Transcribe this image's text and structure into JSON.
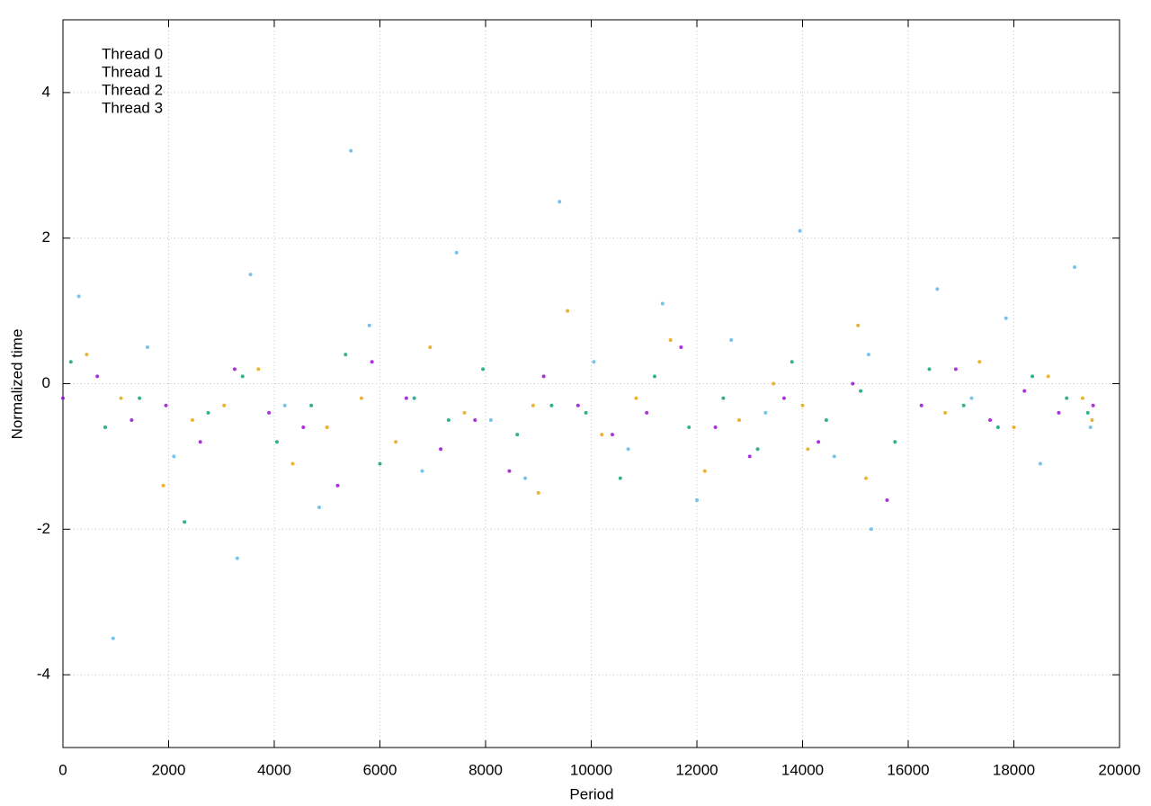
{
  "chart_data": {
    "type": "scatter",
    "xlabel": "Period",
    "ylabel": "Normalized time",
    "xlim": [
      0,
      20000
    ],
    "ylim": [
      -5,
      5
    ],
    "xticks": [
      0,
      2000,
      4000,
      6000,
      8000,
      10000,
      12000,
      14000,
      16000,
      18000,
      20000
    ],
    "yticks": [
      -4,
      -2,
      0,
      2,
      4
    ],
    "grid": true,
    "legend": "top-left",
    "series": [
      {
        "name": "Thread 0",
        "color": "#9400d3",
        "x": [
          0,
          650,
          1300,
          1950,
          2600,
          3250,
          3900,
          4550,
          5200,
          5850,
          6500,
          7150,
          7800,
          8450,
          9100,
          9750,
          10400,
          11050,
          11700,
          12350,
          13000,
          13650,
          14300,
          14950,
          15600,
          16250,
          16900,
          17550,
          18200,
          18850,
          19500
        ],
        "values": [
          -0.2,
          0.1,
          -0.5,
          -0.3,
          -0.8,
          0.2,
          -0.4,
          -0.6,
          -1.4,
          0.3,
          -0.2,
          -0.9,
          -0.5,
          -1.2,
          0.1,
          -0.3,
          -0.7,
          -0.4,
          0.5,
          -0.6,
          -1.0,
          -0.2,
          -0.8,
          0.0,
          -1.6,
          -0.3,
          0.2,
          -0.5,
          -0.1,
          -0.4,
          -0.3
        ]
      },
      {
        "name": "Thread 1",
        "color": "#009e73",
        "x": [
          150,
          800,
          1450,
          2300,
          2750,
          3400,
          4050,
          4700,
          5350,
          6000,
          6650,
          7300,
          7950,
          8600,
          9250,
          9900,
          10550,
          11200,
          11850,
          12500,
          13150,
          13800,
          14450,
          15100,
          15750,
          16400,
          17050,
          17700,
          18350,
          19000,
          19400
        ],
        "values": [
          0.3,
          -0.6,
          -0.2,
          -1.9,
          -0.4,
          0.1,
          -0.8,
          -0.3,
          0.4,
          -1.1,
          -0.2,
          -0.5,
          0.2,
          -0.7,
          -0.3,
          -0.4,
          -1.3,
          0.1,
          -0.6,
          -0.2,
          -0.9,
          0.3,
          -0.5,
          -0.1,
          -0.8,
          0.2,
          -0.3,
          -0.6,
          0.1,
          -0.2,
          -0.4
        ]
      },
      {
        "name": "Thread 2",
        "color": "#56b4e9",
        "x": [
          300,
          950,
          1600,
          2100,
          3300,
          3550,
          4200,
          4850,
          5450,
          5800,
          6800,
          7450,
          8100,
          8750,
          9400,
          10050,
          10700,
          11350,
          12000,
          12650,
          13300,
          13950,
          14600,
          15250,
          15300,
          16550,
          17200,
          17850,
          18500,
          19150,
          19450
        ],
        "values": [
          1.2,
          -3.5,
          0.5,
          -1.0,
          -2.4,
          1.5,
          -0.3,
          -1.7,
          3.2,
          0.8,
          -1.2,
          1.8,
          -0.5,
          -1.3,
          2.5,
          0.3,
          -0.9,
          1.1,
          -1.6,
          0.6,
          -0.4,
          2.1,
          -1.0,
          0.4,
          -2.0,
          1.3,
          -0.2,
          0.9,
          -1.1,
          1.6,
          -0.6
        ]
      },
      {
        "name": "Thread 3",
        "color": "#e69f00",
        "x": [
          450,
          1100,
          1900,
          2450,
          3050,
          3700,
          4350,
          5000,
          5650,
          6300,
          6950,
          7600,
          9000,
          8900,
          9550,
          10200,
          10850,
          11500,
          12150,
          12800,
          13450,
          14100,
          14000,
          15050,
          15200,
          16700,
          17350,
          18000,
          18650,
          19300,
          19480
        ],
        "values": [
          0.4,
          -0.2,
          -1.4,
          -0.5,
          -0.3,
          0.2,
          -1.1,
          -0.6,
          -0.2,
          -0.8,
          0.5,
          -0.4,
          -1.5,
          -0.3,
          1.0,
          -0.7,
          -0.2,
          0.6,
          -1.2,
          -0.5,
          0.0,
          -0.9,
          -0.3,
          0.8,
          -1.3,
          -0.4,
          0.3,
          -0.6,
          0.1,
          -0.2,
          -0.5
        ]
      }
    ]
  }
}
